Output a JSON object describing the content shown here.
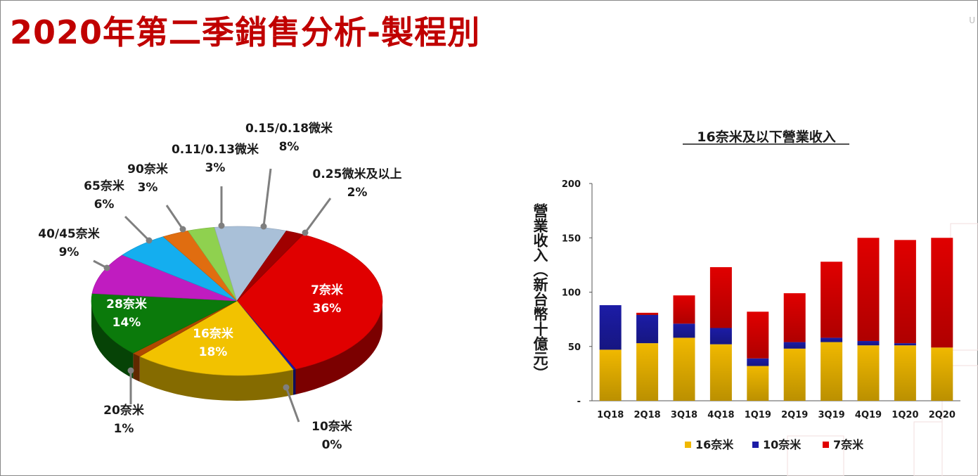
{
  "title": "2020年第二季銷售分析-製程別",
  "logo_text": "U",
  "colors": {
    "title": "#c00000"
  },
  "chart_data": [
    {
      "type": "pie",
      "title": "",
      "slices": [
        {
          "name": "7奈米",
          "pct_label": "36%",
          "value": 36,
          "color": "#e00000"
        },
        {
          "name": "10奈米",
          "pct_label": "0%",
          "value": 0.3,
          "color": "#1a1aa6"
        },
        {
          "name": "16奈米",
          "pct_label": "18%",
          "value": 18,
          "color": "#f2c200"
        },
        {
          "name": "20奈米",
          "pct_label": "1%",
          "value": 1,
          "color": "#b04a00"
        },
        {
          "name": "28奈米",
          "pct_label": "14%",
          "value": 14,
          "color": "#0b7a0b"
        },
        {
          "name": "40/45奈米",
          "pct_label": "9%",
          "value": 9,
          "color": "#c01cc0"
        },
        {
          "name": "65奈米",
          "pct_label": "6%",
          "value": 6,
          "color": "#14aeef"
        },
        {
          "name": "90奈米",
          "pct_label": "3%",
          "value": 3,
          "color": "#e06d10"
        },
        {
          "name": "0.11/0.13微米",
          "pct_label": "3%",
          "value": 3,
          "color": "#8fd14f"
        },
        {
          "name": "0.15/0.18微米",
          "pct_label": "8%",
          "value": 8,
          "color": "#a9c0d8"
        },
        {
          "name": "0.25微米及以上",
          "pct_label": "2%",
          "value": 2,
          "color": "#a00000"
        }
      ]
    },
    {
      "type": "bar",
      "stacked": true,
      "title": "16奈米及以下營業收入",
      "ylabel": "營業收入（新台幣十億元）",
      "ylim": [
        0,
        200
      ],
      "yticks": [
        "-",
        "50",
        "100",
        "150",
        "200"
      ],
      "categories": [
        "1Q18",
        "2Q18",
        "3Q18",
        "4Q18",
        "1Q19",
        "2Q19",
        "3Q19",
        "4Q19",
        "1Q20",
        "2Q20"
      ],
      "series": [
        {
          "name": "16奈米",
          "color": "#f0b800",
          "values": [
            47,
            53,
            58,
            52,
            32,
            48,
            54,
            51,
            51,
            49
          ]
        },
        {
          "name": "10奈米",
          "color": "#1c1ca6",
          "values": [
            41,
            26,
            13,
            15,
            7,
            6,
            4,
            4,
            2,
            0
          ]
        },
        {
          "name": "7奈米",
          "color": "#e00000",
          "values": [
            0,
            2,
            26,
            56,
            43,
            45,
            70,
            95,
            95,
            101
          ]
        }
      ]
    }
  ]
}
